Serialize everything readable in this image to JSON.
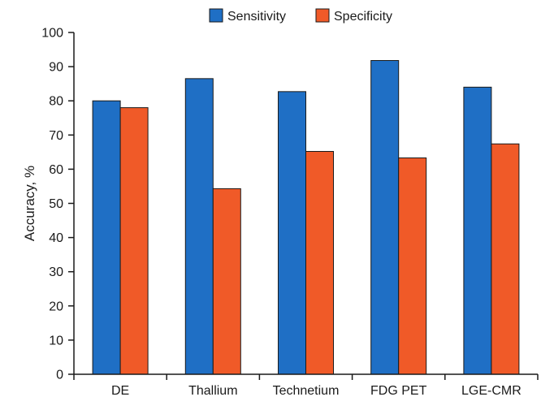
{
  "chart_data": {
    "type": "bar",
    "title": "",
    "xlabel": "",
    "ylabel": "Accuracy, %",
    "ylim": [
      0,
      100
    ],
    "yticks": [
      0,
      10,
      20,
      30,
      40,
      50,
      60,
      70,
      80,
      90,
      100
    ],
    "categories": [
      "DE",
      "Thallium",
      "Technetium",
      "FDG PET",
      "LGE-CMR"
    ],
    "series": [
      {
        "name": "Sensitivity",
        "color": "#1f6fc5",
        "values": [
          80,
          86.5,
          82.7,
          91.8,
          84
        ]
      },
      {
        "name": "Specificity",
        "color": "#f05a28",
        "values": [
          78,
          54.3,
          65.2,
          63.3,
          67.4
        ]
      }
    ],
    "legend_position": "top-center",
    "grid": false
  }
}
